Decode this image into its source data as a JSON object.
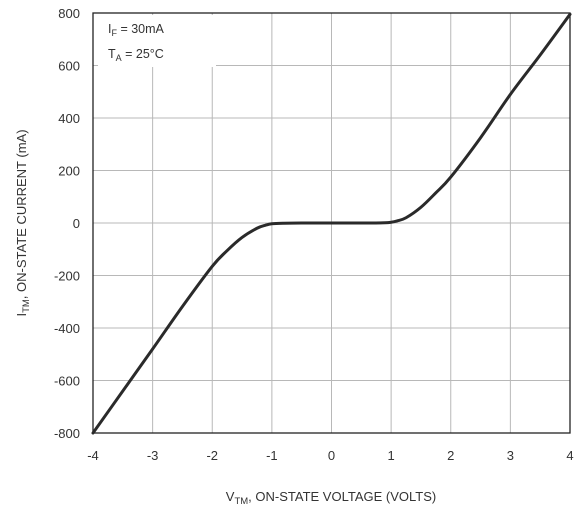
{
  "chart_data": {
    "type": "line",
    "xlabel": {
      "main": "V",
      "sub": "TM",
      "rest": ", ON-STATE VOLTAGE (VOLTS)"
    },
    "ylabel": {
      "main": "I",
      "sub": "TM",
      "rest": ", ON-STATE CURRENT (mA)"
    },
    "xlim": [
      -4,
      4
    ],
    "ylim": [
      -800,
      800
    ],
    "xticks": [
      "-4",
      "-3",
      "-2",
      "-1",
      "0",
      "1",
      "2",
      "3",
      "4"
    ],
    "yticks": [
      "800",
      "600",
      "400",
      "200",
      "0",
      "-200",
      "-400",
      "-600",
      "-800"
    ],
    "grid": true,
    "legend": "none",
    "annotations": [
      {
        "main": "I",
        "sub": "F",
        "rest": " = 30mA"
      },
      {
        "main": "T",
        "sub": "A",
        "rest": " = 25°C"
      }
    ],
    "line_color": "#2a2a2a",
    "series": [
      {
        "x": [
          -4.0,
          -3.5,
          -3.0,
          -2.5,
          -2.0,
          -1.75,
          -1.5,
          -1.25,
          -1.1,
          -1.0,
          -0.8,
          -0.5,
          -0.2,
          0.0,
          0.3,
          0.6,
          0.9,
          1.0,
          1.1,
          1.25,
          1.5,
          1.75,
          2.0,
          2.5,
          3.0,
          3.5,
          4.0
        ],
        "y": [
          -800,
          -640,
          -480,
          -318,
          -165,
          -105,
          -55,
          -20,
          -8,
          -3,
          -1,
          0,
          0,
          0,
          0,
          0,
          1,
          3,
          8,
          20,
          60,
          115,
          175,
          325,
          490,
          640,
          795
        ]
      }
    ]
  }
}
